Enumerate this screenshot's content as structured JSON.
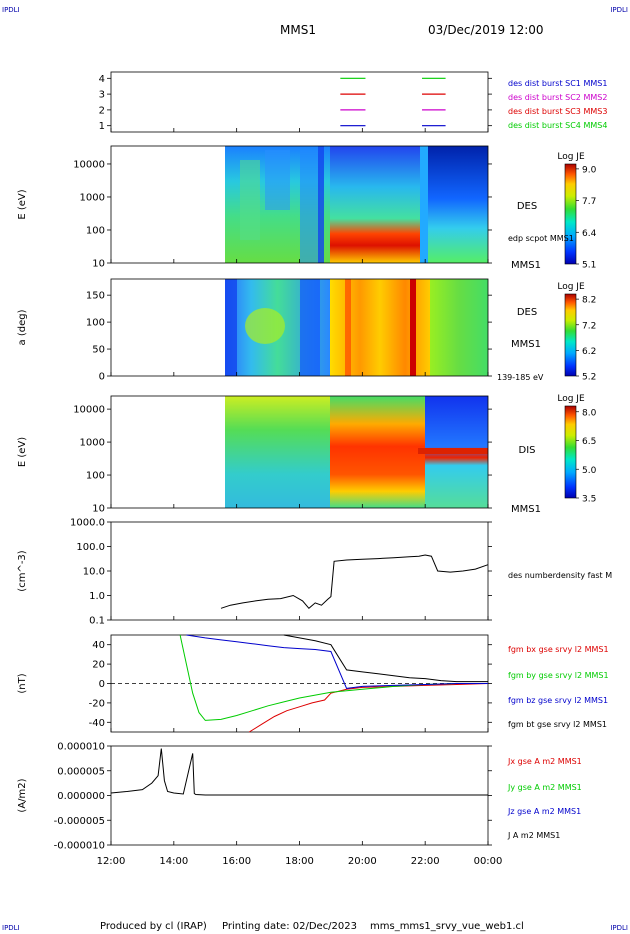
{
  "header": {
    "corner_left": "IPDLI",
    "corner_right": "IPDLI",
    "spacecraft": "MMS1",
    "datetime": "03/Dec/2019 12:00"
  },
  "footer": {
    "produced_by": "Produced by cl (IRAP)",
    "printing_date": "Printing date: 02/Dec/2023",
    "filename": "mms_mms1_srvy_vue_web1.cl",
    "corner_left": "IPDLI",
    "corner_right": "IPDLI"
  },
  "chart_data": [
    {
      "id": "burst",
      "type": "line",
      "y_ticks": [
        "1",
        "2",
        "3",
        "4"
      ],
      "ylim": [
        0.6,
        4.4
      ],
      "segments": [
        {
          "y": 4,
          "color": "#00cc00",
          "x": [
            [
              19.3,
              20.1
            ],
            [
              21.9,
              22.65
            ]
          ]
        },
        {
          "y": 3,
          "color": "#dd0000",
          "x": [
            [
              19.3,
              20.1
            ],
            [
              21.9,
              22.65
            ]
          ]
        },
        {
          "y": 2,
          "color": "#cc00cc",
          "x": [
            [
              19.3,
              20.1
            ],
            [
              21.9,
              22.65
            ]
          ]
        },
        {
          "y": 1,
          "color": "#0000cc",
          "x": [
            [
              19.3,
              20.1
            ],
            [
              21.9,
              22.65
            ]
          ]
        }
      ],
      "legend": [
        {
          "text": "des dist burst SC1 MMS1",
          "color": "#0000cc"
        },
        {
          "text": "des dist burst SC2 MMS2",
          "color": "#cc00cc"
        },
        {
          "text": "des dist burst SC3 MMS3",
          "color": "#dd0000"
        },
        {
          "text": "des dist burst SC4 MMS4",
          "color": "#00cc00"
        }
      ]
    },
    {
      "id": "des_energy",
      "type": "heatmap",
      "ylabel": "E (eV)",
      "y_ticks": [
        "10",
        "100",
        "1000",
        "10000"
      ],
      "ylog": true,
      "ylim": [
        10,
        35000
      ],
      "data_start": 15.6,
      "right_label": "DES",
      "right_sublabel": "MMS1",
      "annotation": "edp scpot MMS1",
      "colorbar": {
        "title": "Log JE",
        "ticks": [
          "9.0",
          "7.7",
          "6.4",
          "5.1"
        ],
        "range": [
          5.1,
          9.2
        ]
      }
    },
    {
      "id": "des_pitch",
      "type": "heatmap",
      "ylabel": "a (deg)",
      "y_ticks": [
        "0",
        "50",
        "100",
        "150"
      ],
      "ylim": [
        0,
        180
      ],
      "data_start": 15.6,
      "right_label": "DES",
      "right_sublabel": "MMS1",
      "annotation": "139-185 eV",
      "colorbar": {
        "title": "Log JE",
        "ticks": [
          "8.2",
          "7.2",
          "6.2",
          "5.2"
        ],
        "range": [
          5.2,
          8.4
        ]
      }
    },
    {
      "id": "dis_energy",
      "type": "heatmap",
      "ylabel": "E (eV)",
      "y_ticks": [
        "10",
        "100",
        "1000",
        "10000"
      ],
      "ylog": true,
      "ylim": [
        10,
        25000
      ],
      "data_start": 15.6,
      "right_label": "DIS",
      "right_sublabel": "MMS1",
      "colorbar": {
        "title": "Log JE",
        "ticks": [
          "8.0",
          "6.5",
          "5.0",
          "3.5"
        ],
        "range": [
          3.5,
          8.3
        ]
      }
    },
    {
      "id": "density",
      "type": "line",
      "ylabel": "(cm^-3)",
      "y_ticks": [
        "0.1",
        "1.0",
        "10.0",
        "100.0",
        "1000.0"
      ],
      "ylog": true,
      "ylim": [
        0.1,
        1000
      ],
      "legend": [
        {
          "text": "des numberdensity fast M",
          "color": "#000000"
        }
      ],
      "series": [
        {
          "name": "des numberdensity fast",
          "color": "#000000",
          "x": [
            15.5,
            15.8,
            16.2,
            16.6,
            17.0,
            17.4,
            17.8,
            18.1,
            18.3,
            18.5,
            18.7,
            18.9,
            19.0,
            19.1,
            19.5,
            20.0,
            20.5,
            21.0,
            21.5,
            21.8,
            22.0,
            22.2,
            22.4,
            22.8,
            23.2,
            23.6,
            24.0
          ],
          "y": [
            0.3,
            0.4,
            0.5,
            0.6,
            0.7,
            0.75,
            1.0,
            0.6,
            0.3,
            0.5,
            0.4,
            0.7,
            0.9,
            25,
            28,
            30,
            32,
            35,
            38,
            40,
            45,
            40,
            10,
            9,
            10,
            12,
            18
          ]
        }
      ]
    },
    {
      "id": "fgm",
      "type": "line",
      "ylabel": "(nT)",
      "y_ticks": [
        "-40",
        "-20",
        "0",
        "20",
        "40"
      ],
      "ylim": [
        -50,
        50
      ],
      "zero_line": true,
      "legend": [
        {
          "text": "fgm bx gse srvy l2 MMS1",
          "color": "#dd0000"
        },
        {
          "text": "fgm by gse srvy l2 MMS1",
          "color": "#00cc00"
        },
        {
          "text": "fgm bz gse srvy l2 MMS1",
          "color": "#0000cc"
        },
        {
          "text": "fgm bt gse srvy l2 MMS1",
          "color": "#000000"
        }
      ],
      "series": [
        {
          "name": "bx",
          "color": "#dd0000",
          "x": [
            16.4,
            16.8,
            17.2,
            17.6,
            18.0,
            18.4,
            18.8,
            19.0,
            19.5,
            20.0,
            21.0,
            22.0,
            23.0,
            24.0
          ],
          "y": [
            -50,
            -42,
            -34,
            -28,
            -24,
            -20,
            -17,
            -10,
            -6,
            -4,
            -3,
            -2,
            -1,
            0
          ]
        },
        {
          "name": "by",
          "color": "#00cc00",
          "x": [
            14.2,
            14.4,
            14.6,
            14.8,
            15.0,
            15.5,
            16.0,
            16.5,
            17.0,
            17.5,
            18.0,
            18.5,
            19.0,
            20.0,
            21.0,
            22.0,
            23.0,
            24.0
          ],
          "y": [
            50,
            20,
            -10,
            -30,
            -38,
            -37,
            -33,
            -28,
            -23,
            -19,
            -15,
            -12,
            -9,
            -6,
            -3,
            -1,
            0,
            0
          ]
        },
        {
          "name": "bz",
          "color": "#0000cc",
          "x": [
            14.4,
            15.0,
            15.5,
            16.0,
            16.5,
            17.0,
            17.5,
            18.0,
            18.5,
            19.0,
            19.5,
            20.0,
            21.0,
            22.0,
            23.0,
            24.0
          ],
          "y": [
            50,
            47,
            45,
            43,
            41,
            39,
            37,
            36,
            35,
            33,
            -5,
            -3,
            -2,
            -1,
            0,
            0
          ]
        },
        {
          "name": "bt",
          "color": "#000000",
          "x": [
            17.5,
            18.0,
            18.5,
            19.0,
            19.5,
            20.0,
            20.5,
            21.0,
            21.5,
            22.0,
            22.5,
            23.0,
            24.0
          ],
          "y": [
            50,
            47,
            44,
            40,
            14,
            12,
            10,
            8,
            6,
            5,
            3,
            2,
            2
          ]
        }
      ]
    },
    {
      "id": "current",
      "type": "line",
      "ylabel": "(A/m2)",
      "y_ticks": [
        "-0.000010",
        "-0.000005",
        "0.000000",
        "0.000005",
        "0.000010"
      ],
      "ylim": [
        -1e-05,
        1e-05
      ],
      "legend": [
        {
          "text": "Jx gse A m2 MMS1",
          "color": "#dd0000"
        },
        {
          "text": "Jy gse A m2 MMS1",
          "color": "#00cc00"
        },
        {
          "text": "Jz gse A m2 MMS1",
          "color": "#0000cc"
        },
        {
          "text": "J A m2 MMS1",
          "color": "#000000"
        }
      ],
      "series": [
        {
          "name": "J",
          "color": "#000000",
          "x": [
            12.0,
            12.5,
            13.0,
            13.3,
            13.5,
            13.6,
            13.7,
            13.8,
            14.0,
            14.3,
            14.6,
            14.65,
            14.7,
            15.0,
            16.0,
            18.0,
            20.0,
            22.0,
            24.0
          ],
          "y": [
            5e-07,
            8e-07,
            1.2e-06,
            2.5e-06,
            4e-06,
            9.5e-06,
            3e-06,
            8e-07,
            5e-07,
            3e-07,
            8.5e-06,
            4e-07,
            2e-07,
            1e-07,
            1e-07,
            1e-07,
            1e-07,
            1e-07,
            1e-07
          ]
        }
      ]
    }
  ],
  "x_axis": {
    "tick_labels": [
      "12:00",
      "14:00",
      "16:00",
      "18:00",
      "20:00",
      "22:00",
      "00:00"
    ],
    "tick_hours": [
      12,
      14,
      16,
      18,
      20,
      22,
      24
    ],
    "range_hours": [
      12,
      24
    ]
  }
}
